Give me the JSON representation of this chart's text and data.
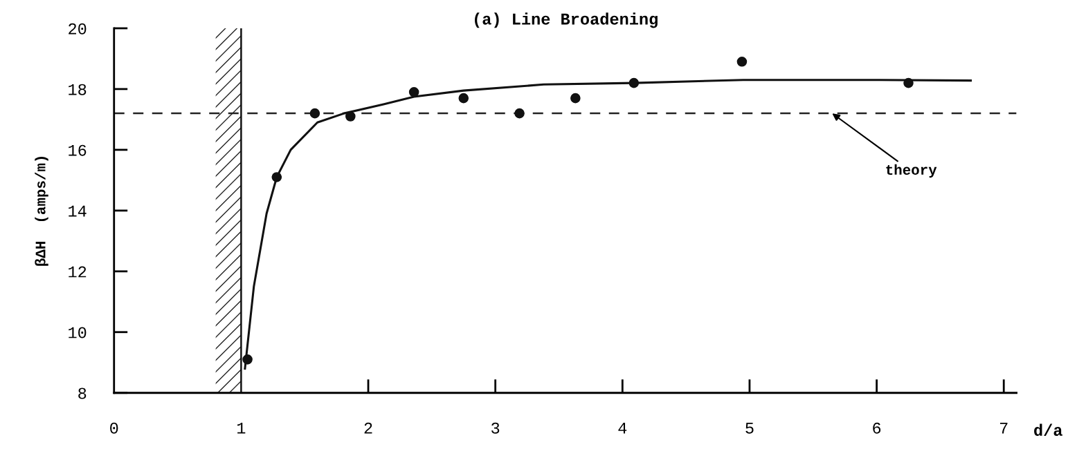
{
  "chart_data": {
    "type": "scatter",
    "title": "(a) Line Broadening",
    "xlabel": "d/a",
    "ylabel": "βΔH  (amps/m)",
    "xlim": [
      0,
      7.1
    ],
    "ylim": [
      8,
      20
    ],
    "xticks": [
      0,
      1,
      2,
      3,
      4,
      5,
      6,
      7
    ],
    "yticks": [
      8,
      10,
      12,
      14,
      16,
      18,
      20
    ],
    "grid": false,
    "legend": false,
    "marker": "circle",
    "series": [
      {
        "color": "#111111",
        "x": [
          1.05,
          1.28,
          1.58,
          1.86,
          2.36,
          2.75,
          3.19,
          3.63,
          4.09,
          4.94,
          6.25
        ],
        "values": [
          9.1,
          15.1,
          17.2,
          17.1,
          17.9,
          17.7,
          17.2,
          17.7,
          18.2,
          18.9,
          18.2
        ]
      },
      {
        "type": "line",
        "color": "#111111",
        "marker": "none",
        "line_style": "solid",
        "x": [
          1.03,
          1.1,
          1.2,
          1.28,
          1.39,
          1.6,
          1.81,
          2.12,
          2.36,
          2.75,
          3.38,
          4.09,
          4.95,
          6.0,
          6.74
        ],
        "values": [
          8.8,
          11.5,
          13.9,
          15.1,
          16.0,
          16.9,
          17.2,
          17.5,
          17.75,
          17.95,
          18.15,
          18.2,
          18.3,
          18.3,
          18.28
        ]
      }
    ],
    "ref_lines": [
      {
        "axis": "y",
        "value": 17.2,
        "color": "#222222",
        "line_style": "dashed"
      },
      {
        "axis": "x",
        "value": 1,
        "color": "#111111",
        "line_style": "solid"
      }
    ],
    "bands": [
      {
        "axis": "x",
        "from": 0.8,
        "to": 1,
        "color": "#222222"
      }
    ],
    "annotations": [
      {
        "text": "theory",
        "x": 5.65,
        "y": 17.2
      }
    ]
  }
}
